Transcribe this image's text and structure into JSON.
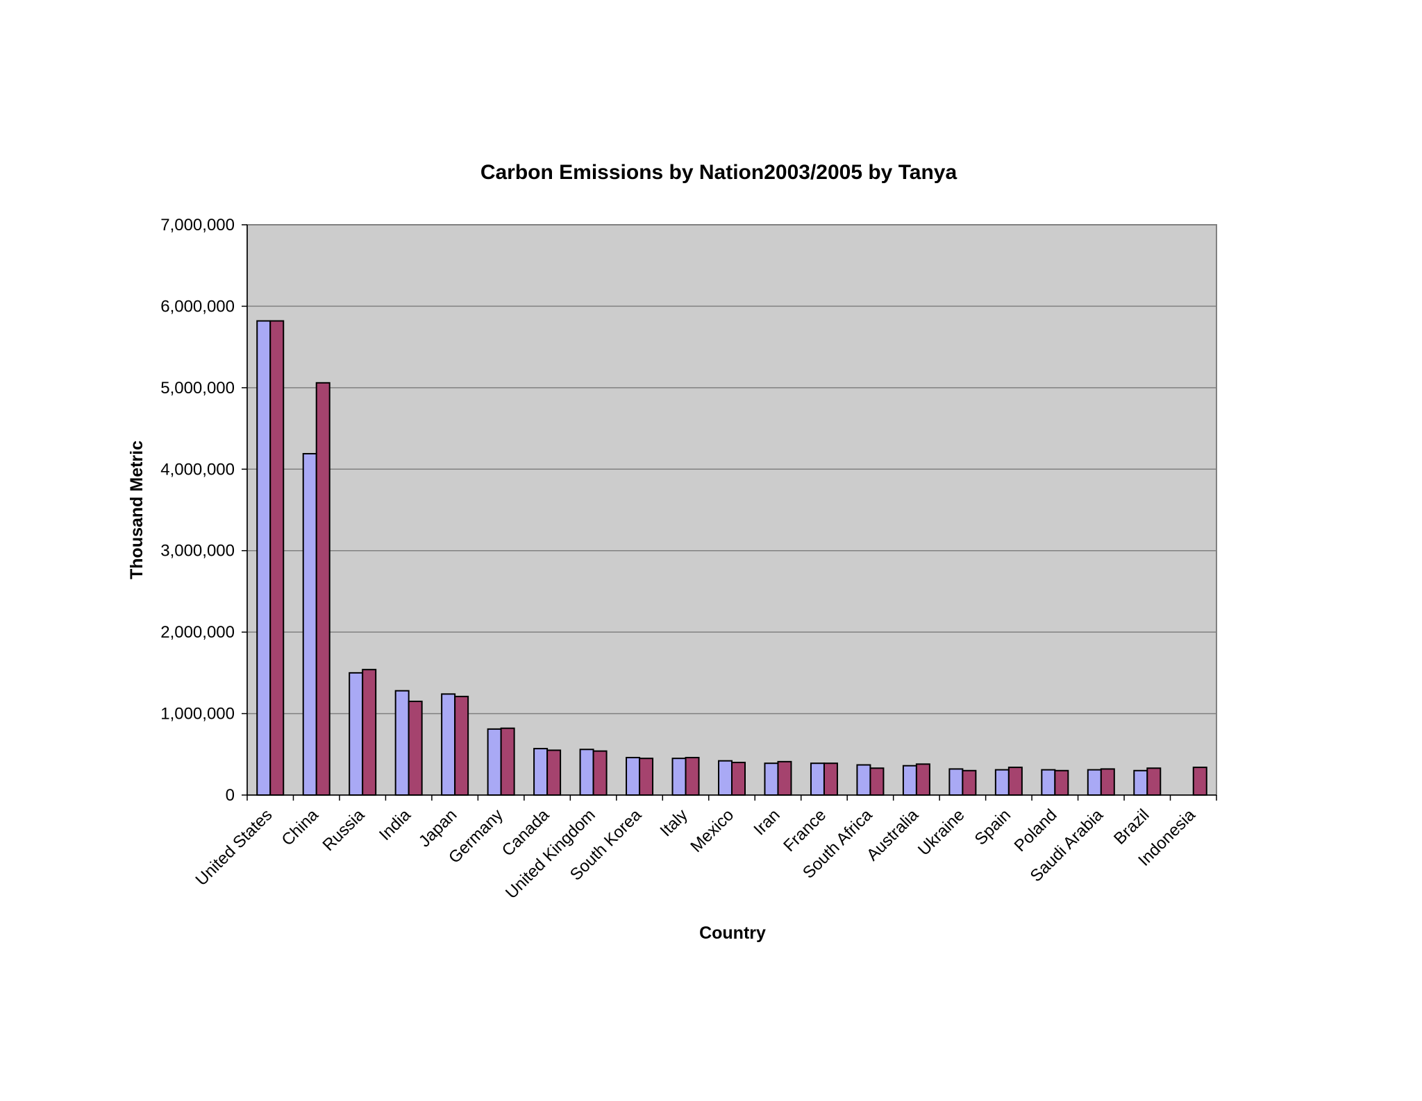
{
  "chart_data": {
    "type": "bar",
    "title": "Carbon Emissions by Nation2003/2005 by  Tanya",
    "xlabel": "Country",
    "ylabel": "Thousand Metric",
    "ylim": [
      0,
      7000000
    ],
    "yticks": [
      0,
      1000000,
      2000000,
      3000000,
      4000000,
      5000000,
      6000000,
      7000000
    ],
    "ytick_labels": [
      "0",
      "1,000,000",
      "2,000,000",
      "3,000,000",
      "4,000,000",
      "5,000,000",
      "6,000,000",
      "7,000,000"
    ],
    "grid": true,
    "legend": "none",
    "plot_background": "#CCCCCC",
    "categories": [
      "United States",
      "China",
      "Russia",
      "India",
      "Japan",
      "Germany",
      "Canada",
      "United Kingdom",
      "South Korea",
      "Italy",
      "Mexico",
      "Iran",
      "France",
      "South Africa",
      "Australia",
      "Ukraine",
      "Spain",
      "Poland",
      "Saudi Arabia",
      "Brazil",
      "Indonesia"
    ],
    "series": [
      {
        "color": "#A9A9F5",
        "values": [
          5820000,
          4190000,
          1500000,
          1280000,
          1240000,
          810000,
          570000,
          560000,
          460000,
          450000,
          420000,
          390000,
          390000,
          370000,
          360000,
          320000,
          310000,
          310000,
          310000,
          300000,
          null
        ]
      },
      {
        "color": "#A5436E",
        "values": [
          5820000,
          5060000,
          1540000,
          1150000,
          1210000,
          820000,
          550000,
          540000,
          450000,
          460000,
          400000,
          410000,
          390000,
          330000,
          380000,
          300000,
          340000,
          300000,
          320000,
          330000,
          340000
        ]
      }
    ]
  }
}
